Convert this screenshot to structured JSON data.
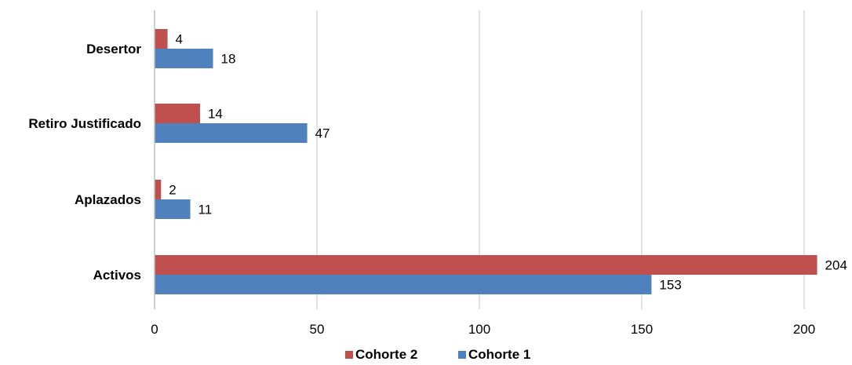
{
  "chart_data": {
    "type": "bar",
    "orientation": "horizontal",
    "categories": [
      "Desertor",
      "Retiro Justificado",
      "Aplazados",
      "Activos"
    ],
    "series": [
      {
        "name": "Cohorte 2",
        "color": "#c0504d",
        "values": [
          4,
          14,
          2,
          204
        ]
      },
      {
        "name": "Cohorte 1",
        "color": "#4f81bd",
        "values": [
          18,
          47,
          11,
          153
        ]
      }
    ],
    "xlim": [
      0,
      200
    ],
    "xticks": [
      0,
      50,
      100,
      150,
      200
    ],
    "grid": true,
    "legend_position": "bottom",
    "title": "",
    "xlabel": "",
    "ylabel": ""
  }
}
